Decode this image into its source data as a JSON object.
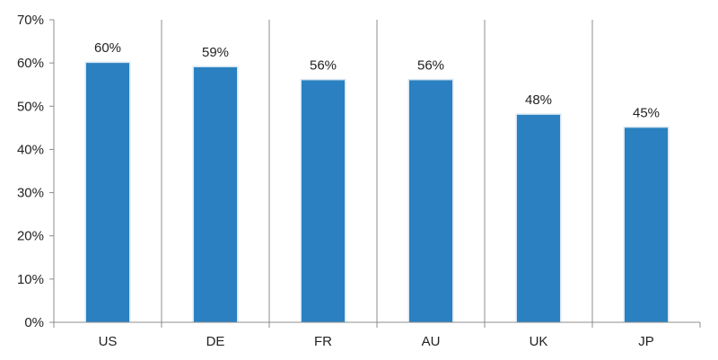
{
  "chart_data": {
    "type": "bar",
    "title": "",
    "xlabel": "",
    "ylabel": "",
    "categories": [
      "US",
      "DE",
      "FR",
      "AU",
      "UK",
      "JP"
    ],
    "values": [
      60,
      59,
      56,
      56,
      48,
      45
    ],
    "data_labels": [
      "60%",
      "59%",
      "56%",
      "56%",
      "48%",
      "45%"
    ],
    "ylim": [
      0,
      70
    ],
    "yticks": [
      0,
      10,
      20,
      30,
      40,
      50,
      60,
      70
    ],
    "ytick_labels": [
      "0%",
      "10%",
      "20%",
      "30%",
      "40%",
      "50%",
      "60%",
      "70%"
    ],
    "grid": "vertical separators between categories",
    "legend": "none",
    "colors": {
      "bar": "#2a80c0",
      "bar_edge": "#d6e6f3",
      "axis": "#8c8c8c",
      "text": "#222222"
    }
  }
}
